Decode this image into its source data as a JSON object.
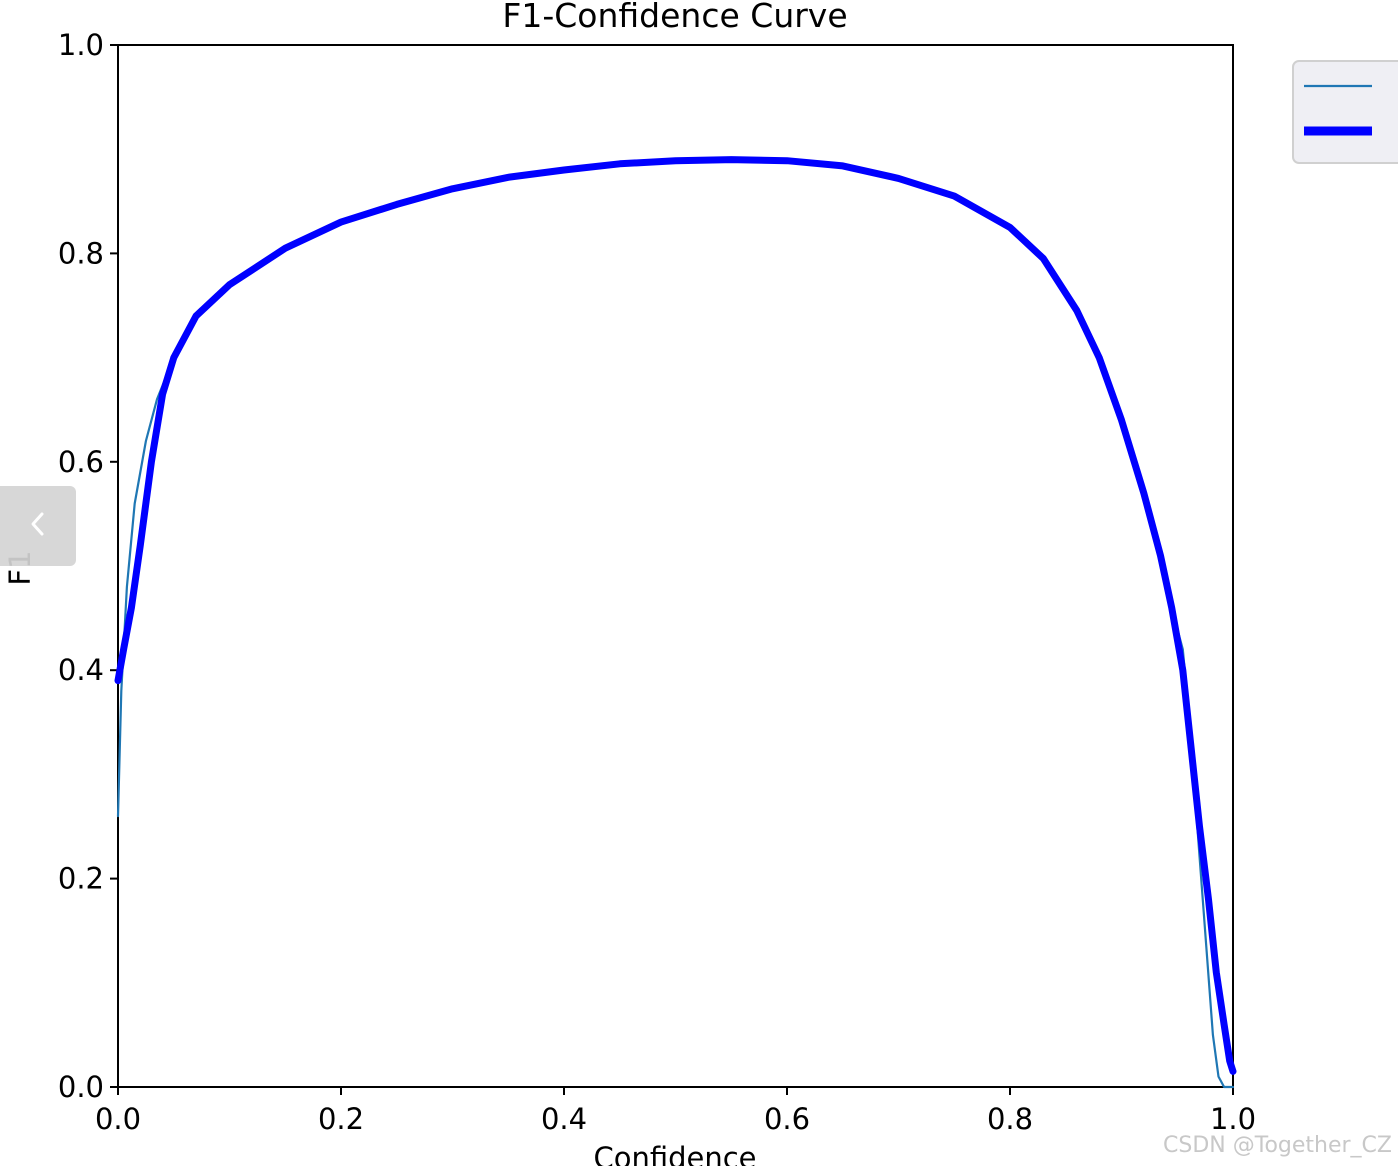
{
  "chart_data": {
    "type": "line",
    "title": "F1-Confidence Curve",
    "xlabel": "Confidence",
    "ylabel": "F1",
    "xlim": [
      0,
      1
    ],
    "ylim": [
      0,
      1
    ],
    "xticks": [
      "0.0",
      "0.2",
      "0.4",
      "0.6",
      "0.8",
      "1.0"
    ],
    "yticks": [
      "0.0",
      "0.2",
      "0.4",
      "0.6",
      "0.8",
      "1.0"
    ],
    "grid": false,
    "legend_position": "outside-top-right",
    "series": [
      {
        "color": "#1f77b4",
        "linewidth": "thin",
        "points": [
          [
            0.0,
            0.26
          ],
          [
            0.003,
            0.38
          ],
          [
            0.008,
            0.48
          ],
          [
            0.015,
            0.56
          ],
          [
            0.025,
            0.62
          ],
          [
            0.035,
            0.66
          ],
          [
            0.05,
            0.7
          ],
          [
            0.07,
            0.74
          ],
          [
            0.1,
            0.77
          ],
          [
            0.15,
            0.805
          ],
          [
            0.2,
            0.83
          ],
          [
            0.25,
            0.847
          ],
          [
            0.3,
            0.862
          ],
          [
            0.35,
            0.873
          ],
          [
            0.4,
            0.88
          ],
          [
            0.45,
            0.886
          ],
          [
            0.5,
            0.889
          ],
          [
            0.55,
            0.89
          ],
          [
            0.6,
            0.889
          ],
          [
            0.65,
            0.884
          ],
          [
            0.7,
            0.872
          ],
          [
            0.75,
            0.855
          ],
          [
            0.8,
            0.825
          ],
          [
            0.83,
            0.795
          ],
          [
            0.86,
            0.745
          ],
          [
            0.88,
            0.7
          ],
          [
            0.9,
            0.64
          ],
          [
            0.92,
            0.57
          ],
          [
            0.935,
            0.51
          ],
          [
            0.945,
            0.46
          ],
          [
            0.955,
            0.42
          ],
          [
            0.962,
            0.34
          ],
          [
            0.968,
            0.25
          ],
          [
            0.975,
            0.15
          ],
          [
            0.982,
            0.05
          ],
          [
            0.987,
            0.01
          ],
          [
            0.992,
            0.0
          ],
          [
            1.0,
            0.0
          ]
        ]
      },
      {
        "color": "#0000ff",
        "linewidth": "thick",
        "points": [
          [
            0.0,
            0.39
          ],
          [
            0.005,
            0.42
          ],
          [
            0.012,
            0.46
          ],
          [
            0.02,
            0.52
          ],
          [
            0.03,
            0.6
          ],
          [
            0.04,
            0.665
          ],
          [
            0.05,
            0.7
          ],
          [
            0.07,
            0.74
          ],
          [
            0.1,
            0.77
          ],
          [
            0.15,
            0.805
          ],
          [
            0.2,
            0.83
          ],
          [
            0.25,
            0.847
          ],
          [
            0.3,
            0.862
          ],
          [
            0.35,
            0.873
          ],
          [
            0.4,
            0.88
          ],
          [
            0.45,
            0.886
          ],
          [
            0.5,
            0.889
          ],
          [
            0.55,
            0.89
          ],
          [
            0.6,
            0.889
          ],
          [
            0.65,
            0.884
          ],
          [
            0.7,
            0.872
          ],
          [
            0.75,
            0.855
          ],
          [
            0.8,
            0.825
          ],
          [
            0.83,
            0.795
          ],
          [
            0.86,
            0.745
          ],
          [
            0.88,
            0.7
          ],
          [
            0.9,
            0.64
          ],
          [
            0.92,
            0.57
          ],
          [
            0.935,
            0.51
          ],
          [
            0.945,
            0.46
          ],
          [
            0.955,
            0.4
          ],
          [
            0.962,
            0.33
          ],
          [
            0.97,
            0.25
          ],
          [
            0.978,
            0.18
          ],
          [
            0.985,
            0.11
          ],
          [
            0.992,
            0.06
          ],
          [
            0.997,
            0.025
          ],
          [
            1.0,
            0.015
          ]
        ]
      }
    ]
  },
  "ui": {
    "nav_button_glyph": "‹",
    "watermark": "CSDN @Together_CZ"
  }
}
